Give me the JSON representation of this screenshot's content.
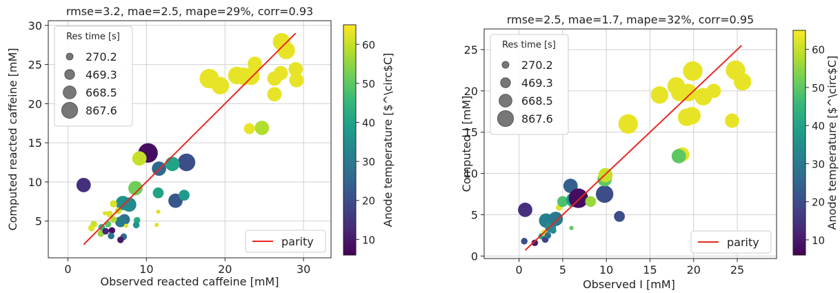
{
  "colorbar_colors": [
    "#440154",
    "#482878",
    "#3e4989",
    "#31688e",
    "#26828e",
    "#1f9e89",
    "#35b779",
    "#6ece58",
    "#b5de2b",
    "#fde725"
  ],
  "parity_color": "#e8251f",
  "chart_data": [
    {
      "type": "scatter",
      "title": "rmse=3.2, mae=2.5, mape=29%, corr=0.93",
      "xlabel": "Observed reacted caffeine [mM]",
      "ylabel": "Computed reacted caffeine [mM]",
      "xlim": [
        -2.5,
        33.5
      ],
      "ylim": [
        0.3,
        30.6
      ],
      "xticks": [
        0,
        10,
        20,
        30
      ],
      "yticks": [
        5,
        10,
        15,
        20,
        25,
        30
      ],
      "grid": true,
      "legend_title": "Res time [s]",
      "legend_sizes": [
        "270.2",
        "469.3",
        "668.5",
        "867.6"
      ],
      "legend_size_values": [
        270.2,
        469.3,
        668.5,
        867.6
      ],
      "parity_label": "parity",
      "parity_line": [
        [
          2.0,
          2.0
        ],
        [
          29.0,
          29.0
        ]
      ],
      "colorbar_label": "Anode temperature [$^\\circ$C]",
      "colorbar_range": [
        6,
        65
      ],
      "colorbar_ticks": [
        10,
        20,
        30,
        40,
        50,
        60
      ],
      "points": [
        {
          "x": 2.0,
          "y": 9.6,
          "size": 470,
          "temp": 14
        },
        {
          "x": 10.2,
          "y": 13.7,
          "size": 870,
          "temp": 8
        },
        {
          "x": 15.1,
          "y": 12.5,
          "size": 700,
          "temp": 20
        },
        {
          "x": 11.6,
          "y": 11.7,
          "size": 470,
          "temp": 26
        },
        {
          "x": 13.3,
          "y": 12.3,
          "size": 470,
          "temp": 40
        },
        {
          "x": 9.1,
          "y": 13.0,
          "size": 470,
          "temp": 60
        },
        {
          "x": 8.6,
          "y": 9.2,
          "size": 470,
          "temp": 52
        },
        {
          "x": 7.0,
          "y": 7.3,
          "size": 470,
          "temp": 36
        },
        {
          "x": 7.8,
          "y": 7.1,
          "size": 470,
          "temp": 34
        },
        {
          "x": 11.5,
          "y": 8.6,
          "size": 270,
          "temp": 40
        },
        {
          "x": 13.7,
          "y": 7.6,
          "size": 470,
          "temp": 22
        },
        {
          "x": 14.8,
          "y": 8.3,
          "size": 270,
          "temp": 38
        },
        {
          "x": 5.8,
          "y": 7.2,
          "size": 120,
          "temp": 62
        },
        {
          "x": 6.4,
          "y": 6.3,
          "size": 100,
          "temp": 60
        },
        {
          "x": 5.3,
          "y": 5.9,
          "size": 100,
          "temp": 62
        },
        {
          "x": 4.7,
          "y": 6.0,
          "size": 40,
          "temp": 62
        },
        {
          "x": 3.3,
          "y": 4.6,
          "size": 100,
          "temp": 60
        },
        {
          "x": 3.0,
          "y": 4.1,
          "size": 100,
          "temp": 62
        },
        {
          "x": 7.2,
          "y": 5.2,
          "size": 270,
          "temp": 28
        },
        {
          "x": 6.7,
          "y": 4.9,
          "size": 270,
          "temp": 30
        },
        {
          "x": 8.8,
          "y": 5.1,
          "size": 100,
          "temp": 42
        },
        {
          "x": 8.7,
          "y": 4.5,
          "size": 100,
          "temp": 36
        },
        {
          "x": 5.1,
          "y": 4.6,
          "size": 100,
          "temp": 50
        },
        {
          "x": 5.8,
          "y": 5.2,
          "size": 100,
          "temp": 58
        },
        {
          "x": 7.4,
          "y": 4.4,
          "size": 40,
          "temp": 62
        },
        {
          "x": 4.3,
          "y": 4.2,
          "size": 100,
          "temp": 44
        },
        {
          "x": 4.2,
          "y": 3.4,
          "size": 100,
          "temp": 56
        },
        {
          "x": 4.8,
          "y": 3.7,
          "size": 100,
          "temp": 12
        },
        {
          "x": 5.6,
          "y": 3.8,
          "size": 100,
          "temp": 8
        },
        {
          "x": 5.5,
          "y": 3.1,
          "size": 100,
          "temp": 28
        },
        {
          "x": 7.1,
          "y": 3.0,
          "size": 100,
          "temp": 26
        },
        {
          "x": 6.7,
          "y": 2.6,
          "size": 100,
          "temp": 10
        },
        {
          "x": 11.3,
          "y": 4.5,
          "size": 40,
          "temp": 62
        },
        {
          "x": 11.5,
          "y": 6.2,
          "size": 40,
          "temp": 62
        },
        {
          "x": 18.0,
          "y": 23.2,
          "size": 870,
          "temp": 63
        },
        {
          "x": 19.4,
          "y": 22.3,
          "size": 700,
          "temp": 63
        },
        {
          "x": 21.5,
          "y": 23.6,
          "size": 700,
          "temp": 63
        },
        {
          "x": 22.4,
          "y": 23.5,
          "size": 700,
          "temp": 63
        },
        {
          "x": 23.3,
          "y": 23.5,
          "size": 700,
          "temp": 63
        },
        {
          "x": 23.8,
          "y": 25.1,
          "size": 470,
          "temp": 63
        },
        {
          "x": 27.2,
          "y": 27.9,
          "size": 700,
          "temp": 63
        },
        {
          "x": 27.8,
          "y": 26.8,
          "size": 700,
          "temp": 63
        },
        {
          "x": 27.1,
          "y": 23.9,
          "size": 470,
          "temp": 63
        },
        {
          "x": 26.3,
          "y": 23.2,
          "size": 470,
          "temp": 63
        },
        {
          "x": 29.0,
          "y": 24.4,
          "size": 470,
          "temp": 63
        },
        {
          "x": 29.1,
          "y": 23.0,
          "size": 470,
          "temp": 63
        },
        {
          "x": 26.3,
          "y": 21.2,
          "size": 470,
          "temp": 63
        },
        {
          "x": 23.1,
          "y": 16.8,
          "size": 270,
          "temp": 63
        },
        {
          "x": 24.7,
          "y": 16.9,
          "size": 470,
          "temp": 58
        }
      ]
    },
    {
      "type": "scatter",
      "title": "rmse=2.5, mae=1.7, mape=32%, corr=0.95",
      "xlabel": "Observed I [mM]",
      "ylabel": "Computed I [mM]",
      "xlim": [
        -4.0,
        29.5
      ],
      "ylim": [
        -0.3,
        27.5
      ],
      "xticks": [
        0,
        5,
        10,
        15,
        20,
        25
      ],
      "yticks": [
        0,
        5,
        10,
        15,
        20,
        25
      ],
      "grid": true,
      "legend_title": "Res time [s]",
      "legend_sizes": [
        "270.2",
        "469.3",
        "668.5",
        "867.6"
      ],
      "legend_size_values": [
        270.2,
        469.3,
        668.5,
        867.6
      ],
      "parity_label": "parity",
      "parity_line": [
        [
          0.7,
          0.7
        ],
        [
          25.5,
          25.5
        ]
      ],
      "colorbar_label": "Anode temperature [$^\\circ$C]",
      "colorbar_range": [
        6,
        65
      ],
      "colorbar_ticks": [
        10,
        20,
        30,
        40,
        50,
        60
      ],
      "points": [
        {
          "x": 0.7,
          "y": 5.6,
          "size": 470,
          "temp": 14
        },
        {
          "x": 0.6,
          "y": 1.8,
          "size": 100,
          "temp": 20
        },
        {
          "x": 1.8,
          "y": 1.6,
          "size": 100,
          "temp": 10
        },
        {
          "x": 2.6,
          "y": 2.4,
          "size": 100,
          "temp": 40
        },
        {
          "x": 2.9,
          "y": 2.8,
          "size": 100,
          "temp": 62
        },
        {
          "x": 3.0,
          "y": 2.0,
          "size": 100,
          "temp": 18
        },
        {
          "x": 3.3,
          "y": 2.5,
          "size": 100,
          "temp": 28
        },
        {
          "x": 3.1,
          "y": 4.3,
          "size": 470,
          "temp": 32
        },
        {
          "x": 3.6,
          "y": 3.5,
          "size": 270,
          "temp": 34
        },
        {
          "x": 3.9,
          "y": 3.1,
          "size": 100,
          "temp": 34
        },
        {
          "x": 4.2,
          "y": 4.5,
          "size": 470,
          "temp": 30
        },
        {
          "x": 4.6,
          "y": 5.9,
          "size": 100,
          "temp": 62
        },
        {
          "x": 5.0,
          "y": 6.6,
          "size": 270,
          "temp": 48
        },
        {
          "x": 5.9,
          "y": 8.5,
          "size": 470,
          "temp": 24
        },
        {
          "x": 6.2,
          "y": 6.8,
          "size": 470,
          "temp": 40
        },
        {
          "x": 6.0,
          "y": 3.4,
          "size": 40,
          "temp": 50
        },
        {
          "x": 6.8,
          "y": 7.0,
          "size": 870,
          "temp": 8
        },
        {
          "x": 8.2,
          "y": 6.6,
          "size": 270,
          "temp": 56
        },
        {
          "x": 9.8,
          "y": 7.5,
          "size": 700,
          "temp": 20
        },
        {
          "x": 9.8,
          "y": 9.3,
          "size": 470,
          "temp": 50
        },
        {
          "x": 9.9,
          "y": 9.8,
          "size": 470,
          "temp": 60
        },
        {
          "x": 11.5,
          "y": 4.8,
          "size": 270,
          "temp": 20
        },
        {
          "x": 12.5,
          "y": 16.0,
          "size": 870,
          "temp": 63
        },
        {
          "x": 16.1,
          "y": 19.5,
          "size": 700,
          "temp": 63
        },
        {
          "x": 18.0,
          "y": 20.6,
          "size": 700,
          "temp": 63
        },
        {
          "x": 18.4,
          "y": 19.8,
          "size": 700,
          "temp": 63
        },
        {
          "x": 19.4,
          "y": 19.8,
          "size": 700,
          "temp": 63
        },
        {
          "x": 19.9,
          "y": 22.4,
          "size": 870,
          "temp": 63
        },
        {
          "x": 21.1,
          "y": 19.3,
          "size": 700,
          "temp": 63
        },
        {
          "x": 22.3,
          "y": 20.0,
          "size": 470,
          "temp": 63
        },
        {
          "x": 19.2,
          "y": 16.8,
          "size": 700,
          "temp": 63
        },
        {
          "x": 19.8,
          "y": 17.0,
          "size": 700,
          "temp": 63
        },
        {
          "x": 24.8,
          "y": 22.5,
          "size": 870,
          "temp": 63
        },
        {
          "x": 25.6,
          "y": 21.1,
          "size": 700,
          "temp": 63
        },
        {
          "x": 24.4,
          "y": 16.4,
          "size": 470,
          "temp": 63
        },
        {
          "x": 18.7,
          "y": 12.3,
          "size": 470,
          "temp": 63
        },
        {
          "x": 18.3,
          "y": 12.1,
          "size": 470,
          "temp": 50
        }
      ]
    }
  ]
}
